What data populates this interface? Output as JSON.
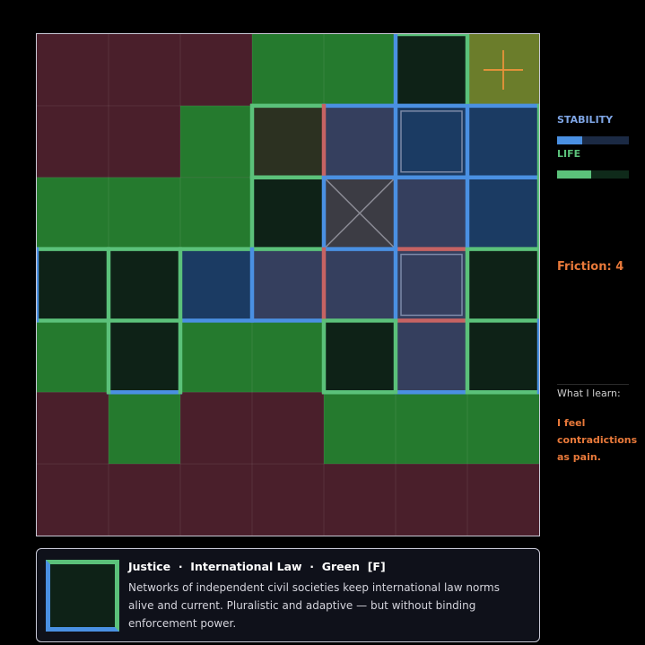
{
  "stats": {
    "stability": {
      "label": "STABILITY",
      "value": 0.35,
      "color": "#4a90e2",
      "track": "#1b2a44"
    },
    "life": {
      "label": "LIFE",
      "value": 0.47,
      "color": "#5bc17a",
      "track": "#0f2a1a"
    }
  },
  "friction": {
    "text": "Friction: 4"
  },
  "learn": {
    "title": "What I learn:",
    "text": "I feel contradictions as pain."
  },
  "info": {
    "title": "Justice  ·  International Law  ·  Green  [F]",
    "description": "Networks of independent civil societies keep international law norms alive and current. Pluralistic and adaptive — but without binding enforcement power."
  },
  "colors": {
    "maroon": "#4a1f2b",
    "green": "#257a2e",
    "dark": "#0e2217",
    "navy": "#1b3b63",
    "slate": "#353f5e",
    "olive": "#2c3121",
    "cursor": "#6b7d2b",
    "accent": "#e8923a",
    "border_green": "#5bc17a",
    "border_blue": "#4a90e2",
    "border_red": "#c66363"
  },
  "grid": {
    "rows": 7,
    "cols": 7,
    "cells": [
      [
        "maroon",
        "maroon",
        "maroon",
        "green",
        "green",
        "dark",
        "cursor"
      ],
      [
        "maroon",
        "maroon",
        "green",
        "olive",
        "slate",
        "navy",
        "navy"
      ],
      [
        "green",
        "green",
        "green",
        "dark",
        "slate-x",
        "slate",
        "navy"
      ],
      [
        "dark",
        "dark",
        "navy",
        "slate",
        "slate",
        "slate",
        "dark"
      ],
      [
        "green",
        "dark",
        "green",
        "green",
        "dark",
        "slate",
        "dark"
      ],
      [
        "maroon",
        "green",
        "maroon",
        "maroon",
        "green",
        "green",
        "green"
      ],
      [
        "maroon",
        "maroon",
        "maroon",
        "maroon",
        "maroon",
        "maroon",
        "maroon"
      ]
    ],
    "inset_cells": [
      [
        1,
        5
      ],
      [
        3,
        5
      ]
    ],
    "cursor_cell": [
      0,
      6
    ],
    "borders": {
      "h": [
        {
          "r": 0,
          "c": 5,
          "color": "green"
        },
        {
          "r": 1,
          "c": 3,
          "color": "green"
        },
        {
          "r": 1,
          "c": 4,
          "color": "blue"
        },
        {
          "r": 1,
          "c": 5,
          "color": "blue"
        },
        {
          "r": 1,
          "c": 6,
          "color": "blue"
        },
        {
          "r": 2,
          "c": 3,
          "color": "green"
        },
        {
          "r": 2,
          "c": 4,
          "color": "blue"
        },
        {
          "r": 2,
          "c": 5,
          "color": "blue"
        },
        {
          "r": 2,
          "c": 6,
          "color": "blue"
        },
        {
          "r": 3,
          "c": 0,
          "color": "green"
        },
        {
          "r": 3,
          "c": 1,
          "color": "green"
        },
        {
          "r": 3,
          "c": 2,
          "color": "green"
        },
        {
          "r": 3,
          "c": 3,
          "color": "green"
        },
        {
          "r": 3,
          "c": 4,
          "color": "blue"
        },
        {
          "r": 3,
          "c": 5,
          "color": "red"
        },
        {
          "r": 3,
          "c": 6,
          "color": "green"
        },
        {
          "r": 4,
          "c": 0,
          "color": "green"
        },
        {
          "r": 4,
          "c": 1,
          "color": "green"
        },
        {
          "r": 4,
          "c": 2,
          "color": "blue"
        },
        {
          "r": 4,
          "c": 3,
          "color": "blue"
        },
        {
          "r": 4,
          "c": 4,
          "color": "green"
        },
        {
          "r": 4,
          "c": 5,
          "color": "red"
        },
        {
          "r": 4,
          "c": 6,
          "color": "green"
        },
        {
          "r": 5,
          "c": 1,
          "color": "blue"
        },
        {
          "r": 5,
          "c": 4,
          "color": "green"
        },
        {
          "r": 5,
          "c": 5,
          "color": "blue"
        },
        {
          "r": 5,
          "c": 6,
          "color": "green"
        }
      ],
      "v": [
        {
          "r": 0,
          "c": 5,
          "color": "blue"
        },
        {
          "r": 0,
          "c": 6,
          "color": "green"
        },
        {
          "r": 1,
          "c": 3,
          "color": "green"
        },
        {
          "r": 1,
          "c": 4,
          "color": "red"
        },
        {
          "r": 1,
          "c": 5,
          "color": "blue"
        },
        {
          "r": 1,
          "c": 6,
          "color": "blue"
        },
        {
          "r": 1,
          "c": 7,
          "color": "green"
        },
        {
          "r": 2,
          "c": 3,
          "color": "green"
        },
        {
          "r": 2,
          "c": 4,
          "color": "blue"
        },
        {
          "r": 2,
          "c": 5,
          "color": "blue"
        },
        {
          "r": 2,
          "c": 6,
          "color": "blue"
        },
        {
          "r": 2,
          "c": 7,
          "color": "green"
        },
        {
          "r": 3,
          "c": 0,
          "color": "blue"
        },
        {
          "r": 3,
          "c": 1,
          "color": "green"
        },
        {
          "r": 3,
          "c": 2,
          "color": "green"
        },
        {
          "r": 3,
          "c": 3,
          "color": "blue"
        },
        {
          "r": 3,
          "c": 4,
          "color": "red"
        },
        {
          "r": 3,
          "c": 5,
          "color": "blue"
        },
        {
          "r": 3,
          "c": 6,
          "color": "green"
        },
        {
          "r": 3,
          "c": 7,
          "color": "green"
        },
        {
          "r": 4,
          "c": 1,
          "color": "green"
        },
        {
          "r": 4,
          "c": 2,
          "color": "green"
        },
        {
          "r": 4,
          "c": 4,
          "color": "green"
        },
        {
          "r": 4,
          "c": 5,
          "color": "green"
        },
        {
          "r": 4,
          "c": 6,
          "color": "green"
        },
        {
          "r": 4,
          "c": 7,
          "color": "blue"
        }
      ]
    }
  }
}
